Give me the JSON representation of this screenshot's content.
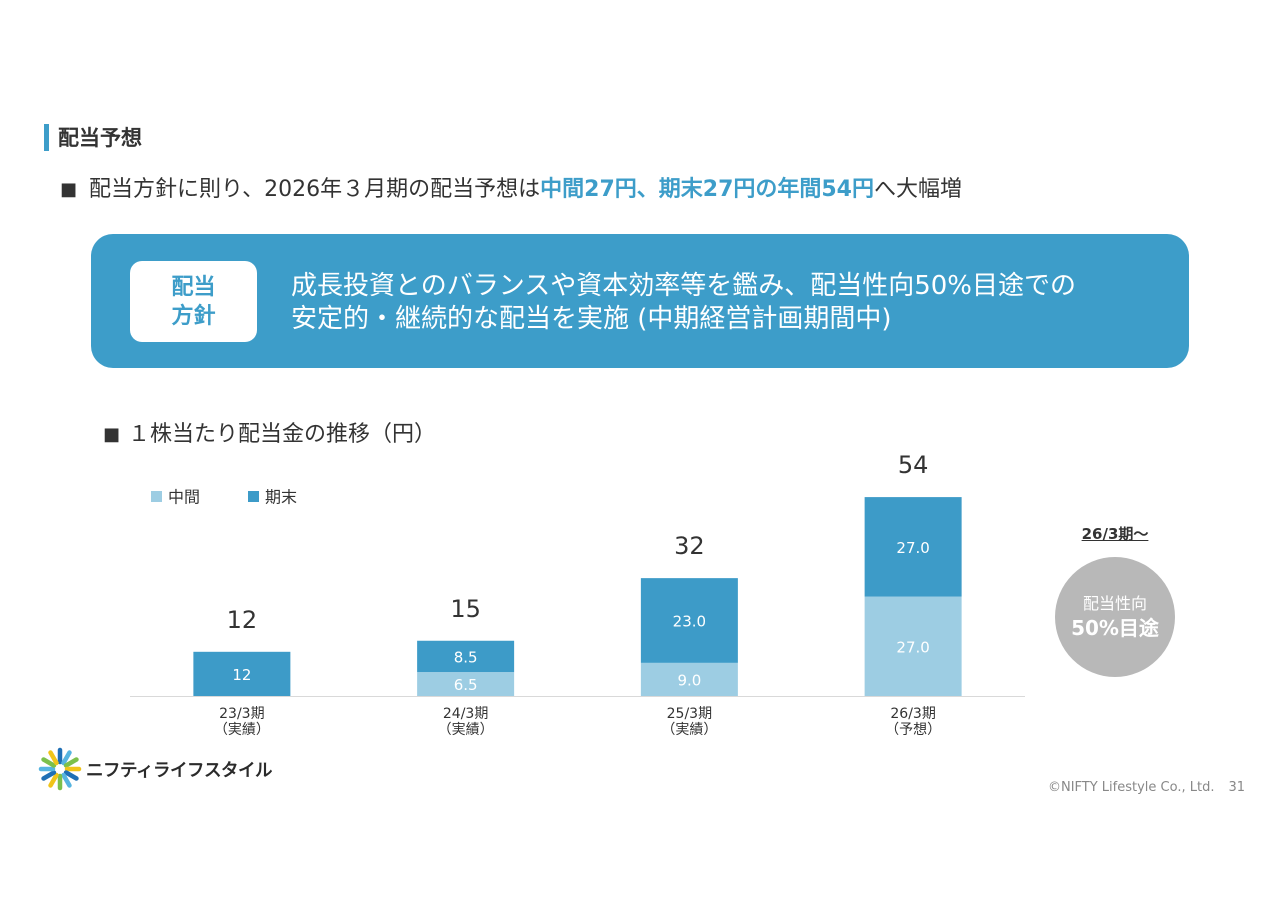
{
  "section_title": "配当予想",
  "lead": {
    "bullet": "■",
    "prefix": "配当方針に則り、2026年３月期の配当予想は",
    "highlight": "中間27円、期末27円の年間54円",
    "suffix": "へ大幅増"
  },
  "policy": {
    "label_line1": "配当",
    "label_line2": "方針",
    "text_line1": "成長投資とのバランスや資本効率等を鑑み、配当性向50%目途での",
    "text_line2": "安定的・継続的な配当を実施 (中期経営計画期間中)"
  },
  "chart_heading": {
    "bullet": "■",
    "text": "１株当たり配当金の推移（円）"
  },
  "chart_data": {
    "type": "bar",
    "stacked": true,
    "categories": [
      "23/3期",
      "24/3期",
      "25/3期",
      "26/3期"
    ],
    "category_sublabels": [
      "（実績）",
      "（実績）",
      "（実績）",
      "（予想）"
    ],
    "series": [
      {
        "name": "中間",
        "values": [
          null,
          6.5,
          9.0,
          27.0
        ],
        "labels": [
          null,
          "6.5",
          "9.0",
          "27.0"
        ],
        "color": "#9dcde3"
      },
      {
        "name": "期末",
        "values": [
          12,
          8.5,
          23.0,
          27.0
        ],
        "labels": [
          "12",
          "8.5",
          "23.0",
          "27.0"
        ],
        "color": "#3d9bc8"
      }
    ],
    "totals": [
      12,
      15,
      32,
      54
    ],
    "ylim": [
      0,
      60
    ],
    "grid": false,
    "legend": "top-left"
  },
  "callout": {
    "period": "26/3期～",
    "line1": "配当性向",
    "line2": "50%目途"
  },
  "logo": {
    "text": "ニフティライフスタイル",
    "ray_colors": [
      "#1f6fb5",
      "#56b4e0",
      "#7cc04b",
      "#f0c419"
    ]
  },
  "footer": {
    "copyright": "©NIFTY Lifestyle Co., Ltd.",
    "page": "31"
  },
  "colors": {
    "accent": "#3d9dc9",
    "callout_circle": "#b8b8b8",
    "text": "#333333",
    "footer_text": "#888888"
  }
}
